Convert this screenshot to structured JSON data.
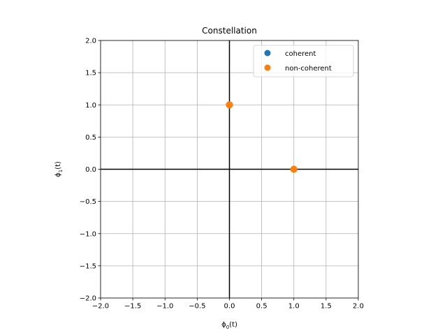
{
  "chart_data": {
    "type": "scatter",
    "title": "Constellation",
    "xlabel": {
      "base": "ϕ",
      "sub": "0",
      "suffix": "(t)"
    },
    "ylabel": {
      "base": "ϕ",
      "sub": "1",
      "suffix": "(t)"
    },
    "xlim": [
      -2.0,
      2.0
    ],
    "ylim": [
      -2.0,
      2.0
    ],
    "xticks": [
      -2.0,
      -1.5,
      -1.0,
      -0.5,
      0.0,
      0.5,
      1.0,
      1.5,
      2.0
    ],
    "yticks": [
      -2.0,
      -1.5,
      -1.0,
      -0.5,
      0.0,
      0.5,
      1.0,
      1.5,
      2.0
    ],
    "xtick_labels": [
      "−2.0",
      "−1.5",
      "−1.0",
      "−0.5",
      "0.0",
      "0.5",
      "1.0",
      "1.5",
      "2.0"
    ],
    "ytick_labels": [
      "−2.0",
      "−1.5",
      "−1.0",
      "−0.5",
      "0.0",
      "0.5",
      "1.0",
      "1.5",
      "2.0"
    ],
    "grid": true,
    "legend_position": "top-right",
    "series": [
      {
        "name": "coherent",
        "color": "#1f77b4",
        "x": [
          1.0,
          0.0
        ],
        "y": [
          0.0,
          1.0
        ]
      },
      {
        "name": "non-coherent",
        "color": "#ff7f0e",
        "x": [
          1.0,
          0.0
        ],
        "y": [
          0.0,
          1.0
        ]
      }
    ]
  }
}
